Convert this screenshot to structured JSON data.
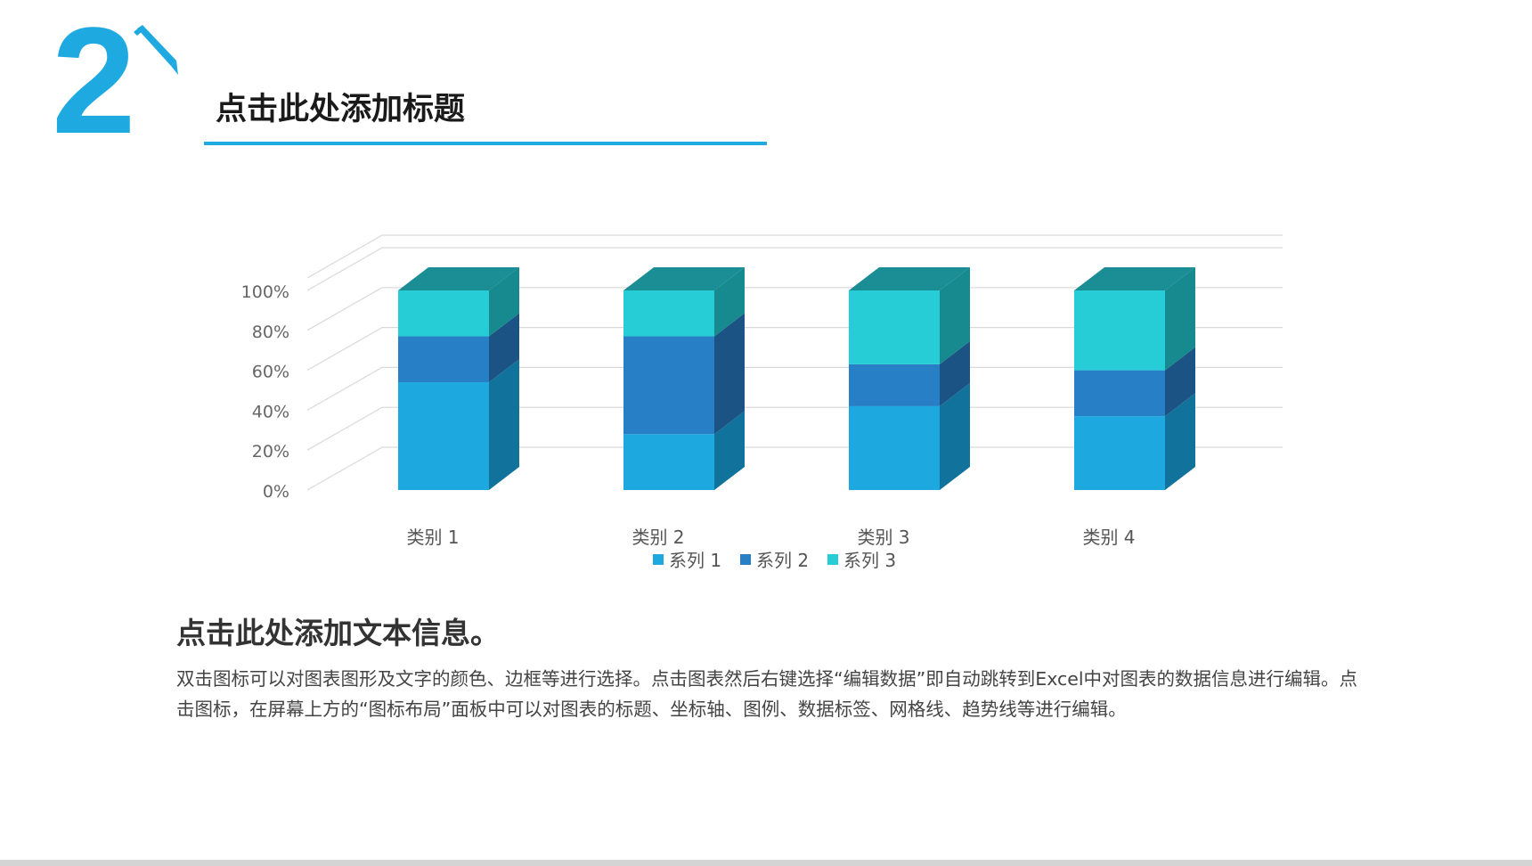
{
  "header": {
    "section_number": "2",
    "title": "点击此处添加标题",
    "accent_color": "#1fa9e1"
  },
  "icons": {
    "pencil": "pencil-icon"
  },
  "chart_data": {
    "type": "bar",
    "stacked": true,
    "percent_stacked": true,
    "three_d": true,
    "categories": [
      "类别 1",
      "类别 2",
      "类别 3",
      "类别 4"
    ],
    "series": [
      {
        "name": "系列 1",
        "values": [
          54,
          28,
          42,
          37
        ],
        "color": "#1da9e0",
        "side_color": "#11729b",
        "top_color": "#0e6f98"
      },
      {
        "name": "系列 2",
        "values": [
          23,
          49,
          21,
          23
        ],
        "color": "#2780c6",
        "side_color": "#1b5384",
        "top_color": "#174f80"
      },
      {
        "name": "系列 3",
        "values": [
          23,
          23,
          37,
          40
        ],
        "color": "#26cdd6",
        "side_color": "#178a8f",
        "top_color": "#1b8d95"
      }
    ],
    "y_ticks": [
      "0%",
      "20%",
      "40%",
      "60%",
      "80%",
      "100%"
    ],
    "ylim": [
      0,
      100
    ],
    "grid": true,
    "legend_position": "bottom",
    "title": "",
    "xlabel": "",
    "ylabel": ""
  },
  "body": {
    "heading": "点击此处添加文本信息。",
    "paragraph": "双击图标可以对图表图形及文字的颜色、边框等进行选择。点击图表然后右键选择“编辑数据”即自动跳转到Excel中对图表的数据信息进行编辑。点击图标，在屏幕上方的“图标布局”面板中可以对图表的标题、坐标轴、图例、数据标签、网格线、趋势线等进行编辑。"
  }
}
